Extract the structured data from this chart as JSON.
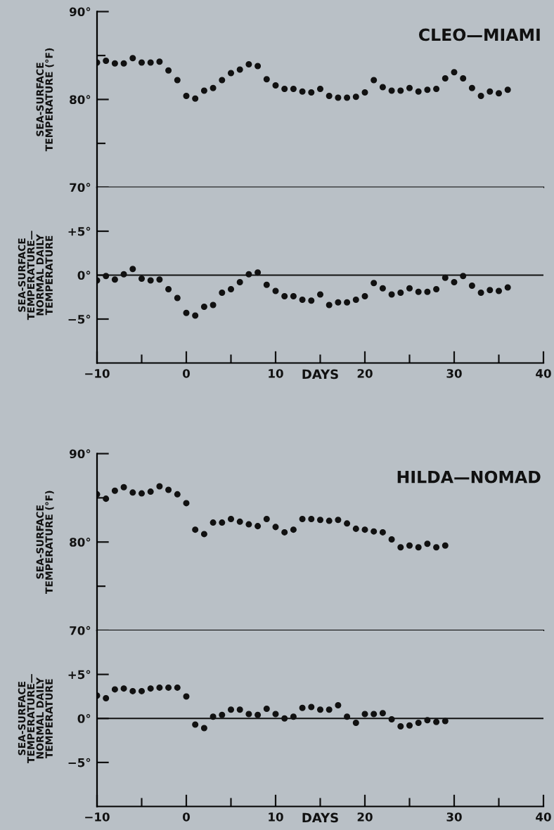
{
  "chart_data": [
    {
      "type": "scatter",
      "title": "CLEO—MIAMI",
      "ylabel": "SEA-SURFACE\nTEMPERATURE (°F)",
      "marker": "circle",
      "color": "#111111",
      "tick_labels": "y",
      "xlim": [
        -10,
        40
      ],
      "ylim": [
        70,
        90
      ],
      "yticks": [
        {
          "value": 90,
          "label": "90°"
        },
        {
          "value": 85,
          "label": null
        },
        {
          "value": 80,
          "label": "80°"
        },
        {
          "value": 75,
          "label": null
        },
        {
          "value": 70,
          "label": "70°"
        }
      ],
      "x": [
        -10,
        -9,
        -8,
        -7,
        -6,
        -5,
        -4,
        -3,
        -2,
        -1,
        0,
        1,
        2,
        3,
        4,
        5,
        6,
        7,
        8,
        9,
        10,
        11,
        12,
        13,
        14,
        15,
        16,
        17,
        18,
        19,
        20,
        21,
        22,
        23,
        24,
        25,
        26,
        27,
        28,
        29,
        30,
        31,
        32,
        33,
        34,
        35,
        36
      ],
      "values": [
        84.2,
        84.4,
        84.1,
        84.1,
        84.7,
        84.2,
        84.2,
        84.3,
        83.3,
        82.2,
        80.4,
        80.1,
        81.0,
        81.3,
        82.2,
        83.0,
        83.4,
        84.0,
        83.8,
        82.3,
        81.6,
        81.2,
        81.2,
        80.9,
        80.8,
        81.2,
        80.4,
        80.2,
        80.2,
        80.3,
        80.8,
        82.2,
        81.4,
        81.0,
        81.0,
        81.3,
        80.9,
        81.1,
        81.2,
        82.4,
        83.1,
        82.4,
        81.3,
        80.4,
        80.9,
        80.7,
        81.1
      ]
    },
    {
      "type": "scatter",
      "ylabel": "SEA-SURFACE\nTEMPERATURE—\nNORMAL DAILY\nTEMPERATURE",
      "xlabel": "DAYS",
      "marker": "circle",
      "color": "#111111",
      "xlim": [
        -10,
        40
      ],
      "ylim": [
        -10,
        10
      ],
      "yticks": [
        {
          "value": 5,
          "label": "+5°"
        },
        {
          "value": 0,
          "label": "0°"
        },
        {
          "value": -5,
          "label": "−5°"
        }
      ],
      "xticks": [
        {
          "value": -10,
          "label": "−10"
        },
        0,
        {
          "value": -5,
          "label": null
        },
        {
          "value": 5,
          "label": null
        },
        10,
        {
          "value": 15,
          "label": null
        },
        20,
        {
          "value": 25,
          "label": null
        },
        30,
        {
          "value": 35,
          "label": null
        },
        40
      ],
      "ref_lines": [
        {
          "axis": "y",
          "value": 0
        }
      ],
      "x": [
        -10,
        -9,
        -8,
        -7,
        -6,
        -5,
        -4,
        -3,
        -2,
        -1,
        0,
        1,
        2,
        3,
        4,
        5,
        6,
        7,
        8,
        9,
        10,
        11,
        12,
        13,
        14,
        15,
        16,
        17,
        18,
        19,
        20,
        21,
        22,
        23,
        24,
        25,
        26,
        27,
        28,
        29,
        30,
        31,
        32,
        33,
        34,
        35,
        36
      ],
      "values": [
        -0.6,
        -0.1,
        -0.5,
        0.1,
        0.7,
        -0.4,
        -0.6,
        -0.5,
        -1.6,
        -2.6,
        -4.3,
        -4.6,
        -3.6,
        -3.4,
        -2.0,
        -1.6,
        -0.8,
        0.1,
        0.3,
        -1.1,
        -1.8,
        -2.4,
        -2.4,
        -2.8,
        -2.9,
        -2.2,
        -3.4,
        -3.1,
        -3.1,
        -2.8,
        -2.4,
        -0.9,
        -1.5,
        -2.2,
        -2.0,
        -1.5,
        -1.9,
        -1.9,
        -1.6,
        -0.3,
        -0.8,
        -0.1,
        -1.2,
        -2.0,
        -1.7,
        -1.8,
        -1.4
      ]
    },
    {
      "type": "scatter",
      "title": "HILDA—NOMAD",
      "ylabel": "SEA-SURFACE\nTEMPERATURE (°F)",
      "marker": "circle",
      "color": "#111111",
      "tick_labels": "y",
      "xlim": [
        -10,
        40
      ],
      "ylim": [
        70,
        90
      ],
      "yticks": [
        {
          "value": 90,
          "label": "90°"
        },
        {
          "value": 85,
          "label": null
        },
        {
          "value": 80,
          "label": "80°"
        },
        {
          "value": 75,
          "label": null
        },
        {
          "value": 70,
          "label": "70°"
        }
      ],
      "x": [
        -10,
        -9,
        -8,
        -7,
        -6,
        -5,
        -4,
        -3,
        -2,
        -1,
        0,
        1,
        2,
        3,
        4,
        5,
        6,
        7,
        8,
        9,
        10,
        11,
        12,
        13,
        14,
        15,
        16,
        17,
        18,
        19,
        20,
        21,
        22,
        23,
        24,
        25,
        26,
        27,
        28,
        29
      ],
      "values": [
        85.4,
        84.9,
        85.8,
        86.2,
        85.6,
        85.5,
        85.7,
        86.3,
        85.9,
        85.4,
        84.4,
        81.4,
        80.9,
        82.2,
        82.2,
        82.6,
        82.3,
        82.0,
        81.8,
        82.6,
        81.7,
        81.1,
        81.4,
        82.6,
        82.6,
        82.5,
        82.4,
        82.5,
        82.1,
        81.5,
        81.4,
        81.2,
        81.1,
        80.3,
        79.4,
        79.6,
        79.4,
        79.8,
        79.4,
        79.6
      ]
    },
    {
      "type": "scatter",
      "ylabel": "SEA-SURFACE\nTEMPERATURE—\nNORMAL DAILY\nTEMPERATURE",
      "xlabel": "DAYS",
      "marker": "circle",
      "color": "#111111",
      "xlim": [
        -10,
        40
      ],
      "ylim": [
        -10,
        10
      ],
      "yticks": [
        {
          "value": 5,
          "label": "+5°"
        },
        {
          "value": 0,
          "label": "0°"
        },
        {
          "value": -5,
          "label": "−5°"
        }
      ],
      "xticks": [
        {
          "value": -10,
          "label": "−10"
        },
        0,
        {
          "value": -5,
          "label": null
        },
        {
          "value": 5,
          "label": null
        },
        10,
        {
          "value": 15,
          "label": null
        },
        20,
        {
          "value": 25,
          "label": null
        },
        30,
        {
          "value": 35,
          "label": null
        },
        40
      ],
      "ref_lines": [
        {
          "axis": "y",
          "value": 0
        }
      ],
      "x": [
        -10,
        -9,
        -8,
        -7,
        -6,
        -5,
        -4,
        -3,
        -2,
        -1,
        0,
        1,
        2,
        3,
        4,
        5,
        6,
        7,
        8,
        9,
        10,
        11,
        12,
        13,
        14,
        15,
        16,
        17,
        18,
        19,
        20,
        21,
        22,
        23,
        24,
        25,
        26,
        27,
        28,
        29
      ],
      "values": [
        2.6,
        2.3,
        3.3,
        3.4,
        3.1,
        3.1,
        3.4,
        3.5,
        3.5,
        3.5,
        2.5,
        -0.7,
        -1.1,
        0.2,
        0.4,
        1.0,
        1.0,
        0.5,
        0.4,
        1.1,
        0.5,
        0.0,
        0.2,
        1.2,
        1.3,
        1.0,
        1.0,
        1.5,
        0.2,
        -0.5,
        0.5,
        0.5,
        0.6,
        -0.1,
        -0.9,
        -0.8,
        -0.5,
        -0.2,
        -0.4,
        -0.3
      ]
    }
  ]
}
